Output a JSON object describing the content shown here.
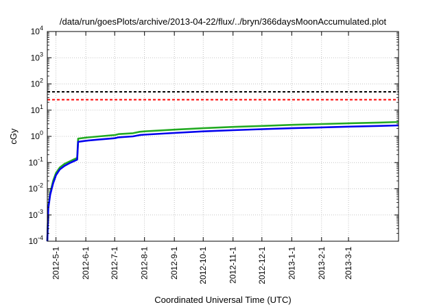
{
  "chart_data": {
    "type": "line",
    "title": "/data/run/goesPlots/archive/2013-04-22/flux/../bryn/366daysMoonAccumulated.plot",
    "xlabel": "Coordinated Universal Time (UTC)",
    "ylabel": "cGy",
    "yscale": "log",
    "ylim": [
      0.0001,
      10000
    ],
    "xlim": [
      "2012-04-22",
      "2013-04-22"
    ],
    "grid": true,
    "x_ticks": [
      "2012-5-1",
      "2012-6-1",
      "2012-7-1",
      "2012-8-1",
      "2012-9-1",
      "2012-10-1",
      "2012-11-1",
      "2012-12-1",
      "2013-1-1",
      "2013-2-1",
      "2013-3-1"
    ],
    "y_ticks": [
      {
        "base": "10",
        "exp": "-4",
        "value": 0.0001
      },
      {
        "base": "10",
        "exp": "-3",
        "value": 0.001
      },
      {
        "base": "10",
        "exp": "-2",
        "value": 0.01
      },
      {
        "base": "10",
        "exp": "-1",
        "value": 0.1
      },
      {
        "base": "10",
        "exp": "0",
        "value": 1
      },
      {
        "base": "10",
        "exp": "1",
        "value": 10
      },
      {
        "base": "10",
        "exp": "2",
        "value": 100
      },
      {
        "base": "10",
        "exp": "3",
        "value": 1000
      },
      {
        "base": "10",
        "exp": "4",
        "value": 10000
      }
    ],
    "reference_lines": [
      {
        "value": 50,
        "color": "#000000",
        "style": "dashed"
      },
      {
        "value": 25,
        "color": "#ff0000",
        "style": "dashed"
      }
    ],
    "series": [
      {
        "color": "#22aa22",
        "x": [
          "2012-04-22",
          "2012-04-23",
          "2012-04-25",
          "2012-04-28",
          "2012-05-01",
          "2012-05-05",
          "2012-05-10",
          "2012-05-15",
          "2012-05-20",
          "2012-05-23",
          "2012-05-24",
          "2012-06-01",
          "2012-06-15",
          "2012-07-01",
          "2012-07-05",
          "2012-07-20",
          "2012-07-27",
          "2012-08-01",
          "2012-09-01",
          "2012-10-01",
          "2012-11-01",
          "2012-12-01",
          "2013-01-01",
          "2013-02-01",
          "2013-03-01",
          "2013-04-01",
          "2013-04-22"
        ],
        "values": [
          0.0001,
          0.002,
          0.007,
          0.02,
          0.04,
          0.065,
          0.09,
          0.11,
          0.135,
          0.15,
          0.82,
          0.9,
          1.0,
          1.12,
          1.22,
          1.32,
          1.5,
          1.55,
          1.8,
          2.05,
          2.3,
          2.5,
          2.75,
          2.95,
          3.15,
          3.35,
          3.55
        ]
      },
      {
        "color": "#0000ee",
        "x": [
          "2012-04-22",
          "2012-04-23",
          "2012-04-25",
          "2012-04-28",
          "2012-05-01",
          "2012-05-05",
          "2012-05-10",
          "2012-05-15",
          "2012-05-20",
          "2012-05-23",
          "2012-05-24",
          "2012-06-01",
          "2012-06-15",
          "2012-07-01",
          "2012-07-05",
          "2012-07-20",
          "2012-07-27",
          "2012-08-01",
          "2012-09-01",
          "2012-10-01",
          "2012-11-01",
          "2012-12-01",
          "2013-01-01",
          "2013-02-01",
          "2013-03-01",
          "2013-04-01",
          "2013-04-22"
        ],
        "values": [
          0.0001,
          0.0018,
          0.006,
          0.016,
          0.033,
          0.055,
          0.075,
          0.095,
          0.115,
          0.13,
          0.62,
          0.68,
          0.76,
          0.85,
          0.92,
          1.0,
          1.12,
          1.16,
          1.35,
          1.55,
          1.72,
          1.88,
          2.05,
          2.2,
          2.35,
          2.5,
          2.62
        ]
      }
    ]
  }
}
